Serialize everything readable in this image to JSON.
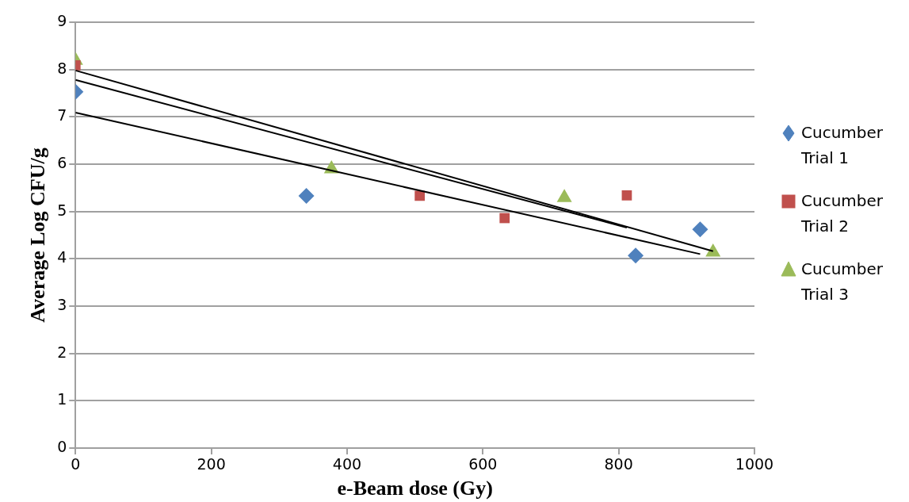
{
  "chart_data": {
    "type": "scatter",
    "xlabel": "e-Beam dose (Gy)",
    "ylabel": "Average Log CFU/g",
    "xlim": [
      0,
      1000
    ],
    "xticks": [
      0,
      200,
      400,
      600,
      800,
      1000
    ],
    "ylim": [
      0,
      9
    ],
    "yticks": [
      0,
      1,
      2,
      3,
      4,
      5,
      6,
      7,
      8,
      9
    ],
    "grid": "y",
    "legend": "right",
    "series": [
      {
        "name": "Cucumber Trial 1",
        "color": "#4f81bd",
        "marker": "diamond",
        "x": [
          0,
          340,
          825,
          920
        ],
        "values": [
          7.53,
          5.33,
          4.07,
          4.62
        ]
      },
      {
        "name": "Cucumber Trial 2",
        "color": "#c0504d",
        "marker": "square",
        "x": [
          0,
          507,
          632,
          812
        ],
        "values": [
          8.09,
          5.33,
          4.86,
          5.34
        ]
      },
      {
        "name": "Cucumber Trial 3",
        "color": "#9bbb59",
        "marker": "triangle",
        "x": [
          0,
          377,
          720,
          939
        ],
        "values": [
          8.19,
          5.9,
          5.29,
          4.14
        ]
      },
      {
        "type": "line",
        "color": "#000000",
        "x": [
          0,
          920
        ],
        "values": [
          7.09,
          4.1
        ]
      },
      {
        "type": "line",
        "color": "#000000",
        "x": [
          0,
          812
        ],
        "values": [
          7.78,
          4.66
        ]
      },
      {
        "type": "line",
        "color": "#000000",
        "x": [
          0,
          939
        ],
        "values": [
          7.98,
          4.16
        ]
      }
    ]
  }
}
